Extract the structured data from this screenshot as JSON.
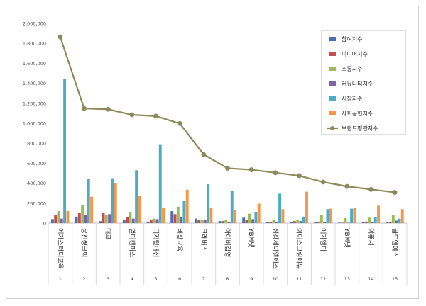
{
  "chart_data": {
    "type": "bar",
    "title": "",
    "xlabel": "",
    "ylabel": "",
    "ylim": [
      0,
      2000000
    ],
    "yticks": [
      "0",
      "200,000",
      "400,000",
      "600,000",
      "800,000",
      "1,000,000",
      "1,200,000",
      "1,400,000",
      "1,600,000",
      "1,800,000",
      "2,000,000"
    ],
    "indices": [
      "1",
      "2",
      "3",
      "4",
      "5",
      "6",
      "7",
      "8",
      "9",
      "10",
      "11",
      "12",
      "13",
      "14",
      "15"
    ],
    "categories": [
      "메가스터디교육",
      "웅진씽크빅",
      "대교",
      "멀티캠퍼스",
      "디지털대성",
      "비상교육",
      "크레버스",
      "아이비김영",
      "YBM넷",
      "정상제이엘에스",
      "아이스크림에듀",
      "메가엠디",
      "YBM넷",
      "이퓨쳐",
      "골드앤에스"
    ],
    "series": [
      {
        "name": "참여지수",
        "type": "bar",
        "color": "#4a6fb5",
        "values": [
          40000,
          65000,
          20000,
          35000,
          15000,
          120000,
          45000,
          20000,
          55000,
          10000,
          10000,
          10000,
          5000,
          10000,
          10000
        ]
      },
      {
        "name": "미디어지수",
        "type": "bar",
        "color": "#c0504d",
        "values": [
          85000,
          100000,
          100000,
          60000,
          30000,
          90000,
          30000,
          20000,
          35000,
          10000,
          20000,
          15000,
          5000,
          15000,
          10000
        ]
      },
      {
        "name": "소통지수",
        "type": "bar",
        "color": "#9bbb59",
        "values": [
          120000,
          185000,
          80000,
          110000,
          45000,
          165000,
          30000,
          30000,
          95000,
          35000,
          30000,
          80000,
          50000,
          55000,
          80000
        ]
      },
      {
        "name": "커뮤니티지수",
        "type": "bar",
        "color": "#8064a2",
        "values": [
          45000,
          80000,
          90000,
          45000,
          40000,
          65000,
          30000,
          15000,
          40000,
          15000,
          20000,
          10000,
          5000,
          10000,
          25000
        ]
      },
      {
        "name": "시장지수",
        "type": "bar",
        "color": "#4bacc6",
        "values": [
          1440000,
          445000,
          450000,
          530000,
          790000,
          220000,
          390000,
          325000,
          110000,
          295000,
          65000,
          140000,
          145000,
          60000,
          45000
        ]
      },
      {
        "name": "사회공헌지수",
        "type": "bar",
        "color": "#f79646",
        "values": [
          120000,
          265000,
          400000,
          270000,
          150000,
          335000,
          150000,
          130000,
          195000,
          140000,
          315000,
          145000,
          155000,
          175000,
          140000
        ]
      },
      {
        "name": "브랜드평판지수",
        "type": "line",
        "color": "#8b8a5a",
        "values": [
          1865000,
          1148000,
          1140000,
          1085000,
          1072000,
          998000,
          688000,
          550000,
          535000,
          505000,
          475000,
          412000,
          368000,
          338000,
          308000
        ]
      }
    ],
    "legend_position": "top-right",
    "grid": false
  }
}
